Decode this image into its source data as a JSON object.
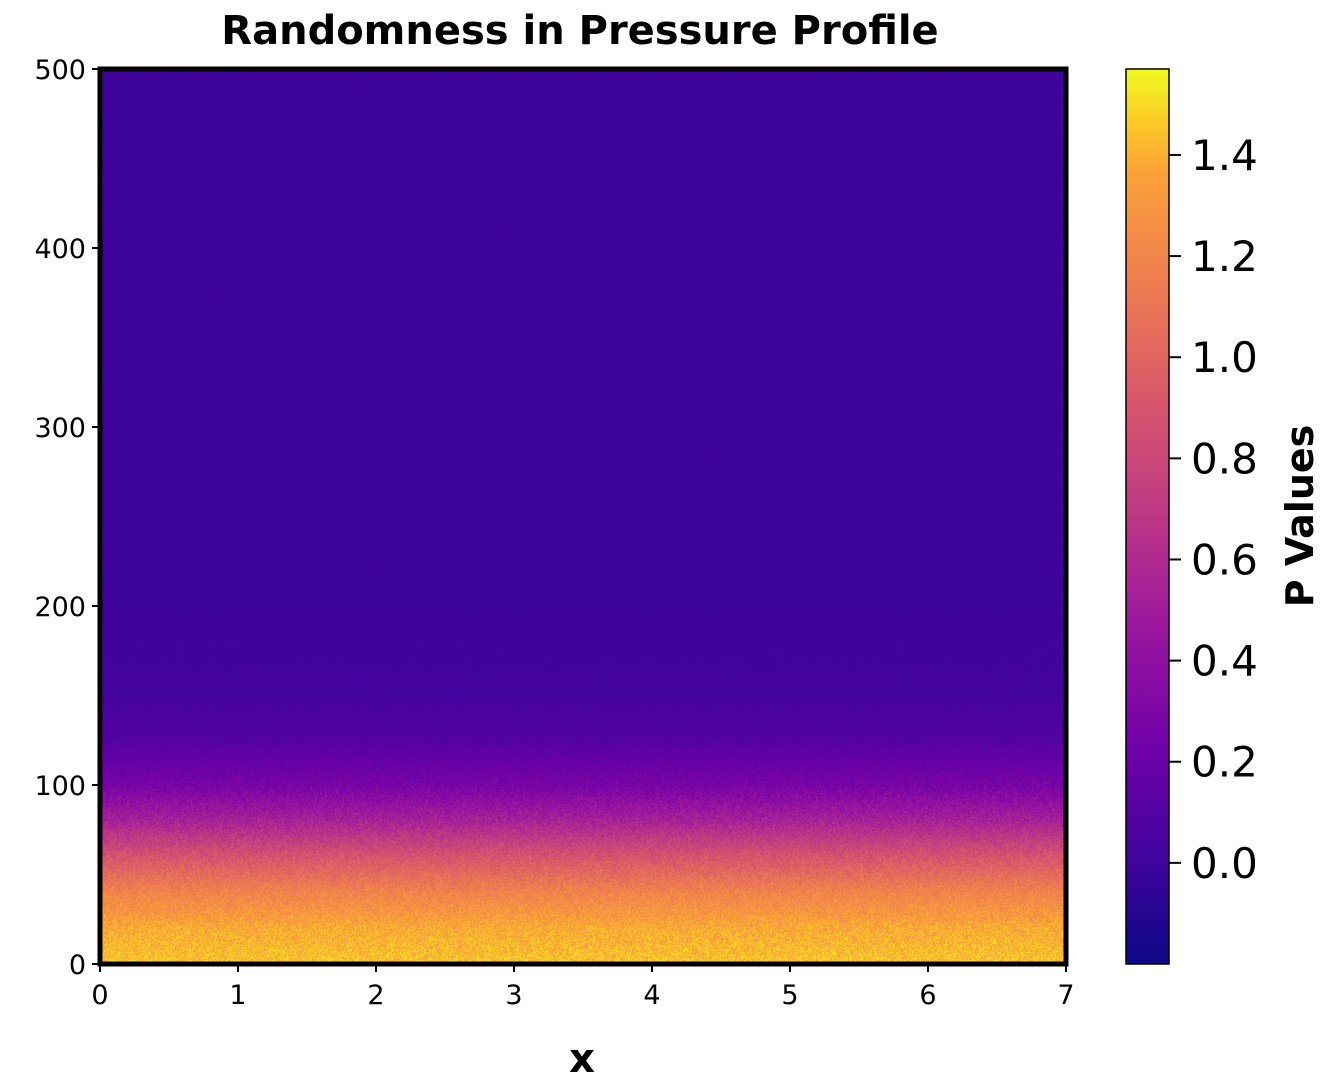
{
  "chart_data": {
    "type": "heatmap",
    "title": "Randomness in Pressure Profile",
    "xlabel": "x",
    "ylabel": "",
    "xlim": [
      0,
      7
    ],
    "ylim": [
      0,
      500
    ],
    "xticks": [
      "0",
      "1",
      "2",
      "3",
      "4",
      "5",
      "6",
      "7"
    ],
    "yticks": [
      "0",
      "100",
      "200",
      "300",
      "400",
      "500"
    ],
    "colormap": "plasma",
    "colorbar": {
      "label": "P Values",
      "range": [
        -0.2,
        1.57
      ],
      "ticks": [
        "0.0",
        "0.2",
        "0.4",
        "0.6",
        "0.8",
        "1.0",
        "1.2",
        "1.4"
      ]
    },
    "field": {
      "description_values": "pressure decays with y from about 1.45 at y=0 to about 0.0 above y≈150, with random noise",
      "profile": [
        {
          "y": 0,
          "p": 1.45
        },
        {
          "y": 20,
          "p": 1.38
        },
        {
          "y": 40,
          "p": 1.2
        },
        {
          "y": 60,
          "p": 0.9
        },
        {
          "y": 80,
          "p": 0.55
        },
        {
          "y": 100,
          "p": 0.28
        },
        {
          "y": 125,
          "p": 0.1
        },
        {
          "y": 150,
          "p": 0.03
        },
        {
          "y": 200,
          "p": 0.0
        },
        {
          "y": 500,
          "p": 0.0
        }
      ],
      "noise": 0.12
    },
    "grid": false
  }
}
